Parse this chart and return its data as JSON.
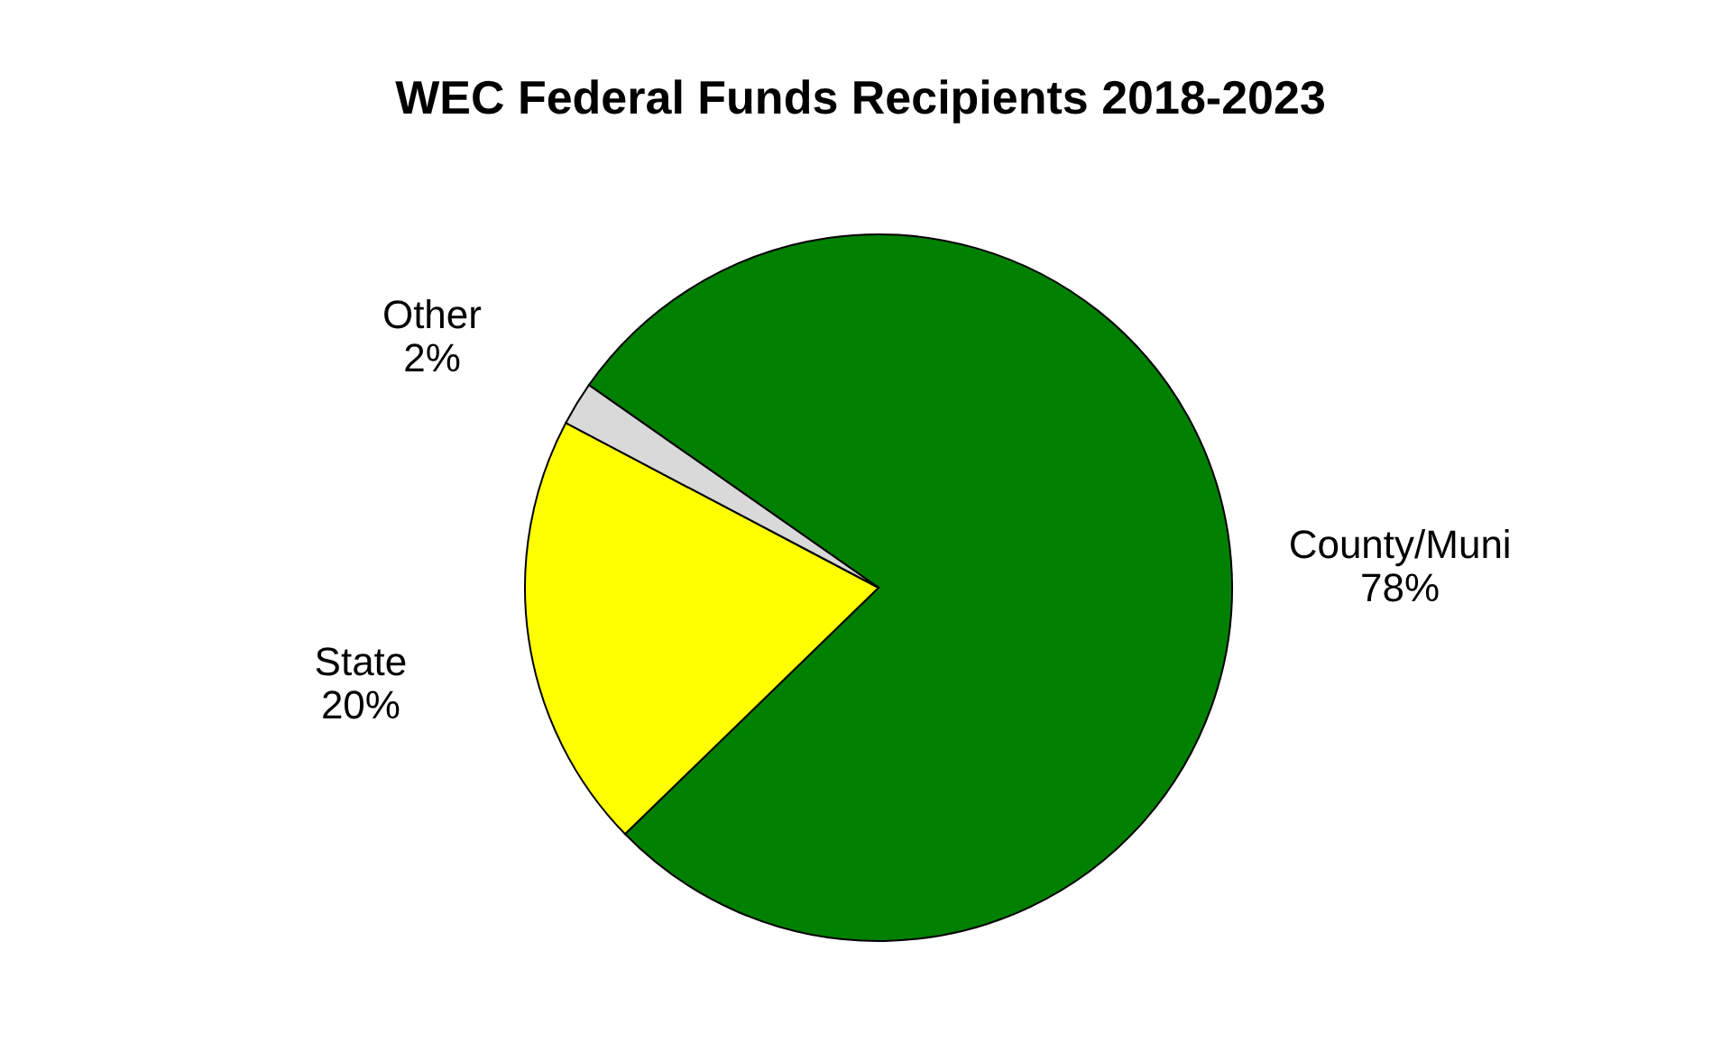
{
  "chart_data": {
    "type": "pie",
    "title": "WEC Federal Funds Recipients 2018-2023",
    "categories": [
      "County/Muni",
      "State",
      "Other"
    ],
    "values": [
      78,
      20,
      2
    ],
    "value_labels": [
      "78%",
      "20%",
      "2%"
    ],
    "colors": [
      "#008000",
      "#ffff00",
      "#d9d9d9"
    ],
    "legend": false
  }
}
